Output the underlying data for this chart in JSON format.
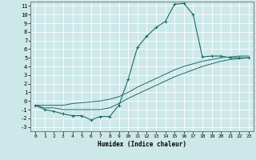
{
  "xlabel": "Humidex (Indice chaleur)",
  "xlim": [
    -0.5,
    23.5
  ],
  "ylim": [
    -3.5,
    11.5
  ],
  "xticks": [
    0,
    1,
    2,
    3,
    4,
    5,
    6,
    7,
    8,
    9,
    10,
    11,
    12,
    13,
    14,
    15,
    16,
    17,
    18,
    19,
    20,
    21,
    22,
    23
  ],
  "yticks": [
    -3,
    -2,
    -1,
    0,
    1,
    2,
    3,
    4,
    5,
    6,
    7,
    8,
    9,
    10,
    11
  ],
  "bg_color": "#cde8e8",
  "grid_color": "#ffffff",
  "line_color": "#1a6b6b",
  "line1_x": [
    0,
    1,
    2,
    3,
    4,
    5,
    6,
    7,
    8,
    9,
    10,
    11,
    12,
    13,
    14,
    15,
    16,
    17,
    18,
    19,
    20,
    21,
    22,
    23
  ],
  "line1_y": [
    -0.5,
    -1.0,
    -1.2,
    -1.5,
    -1.7,
    -1.7,
    -2.2,
    -1.8,
    -1.8,
    -0.5,
    2.5,
    6.2,
    7.5,
    8.5,
    9.2,
    11.2,
    11.3,
    10.0,
    5.1,
    5.2,
    5.2,
    5.0,
    5.0,
    5.0
  ],
  "line2_x": [
    0,
    1,
    2,
    3,
    4,
    5,
    6,
    7,
    8,
    9,
    10,
    11,
    12,
    13,
    14,
    15,
    16,
    17,
    18,
    19,
    20,
    21,
    22,
    23
  ],
  "line2_y": [
    -0.5,
    -0.8,
    -0.8,
    -1.0,
    -1.0,
    -1.0,
    -1.0,
    -1.0,
    -0.8,
    -0.3,
    0.3,
    0.8,
    1.3,
    1.8,
    2.3,
    2.8,
    3.2,
    3.6,
    4.0,
    4.3,
    4.6,
    4.8,
    4.9,
    5.0
  ],
  "line3_x": [
    0,
    1,
    2,
    3,
    4,
    5,
    6,
    7,
    8,
    9,
    10,
    11,
    12,
    13,
    14,
    15,
    16,
    17,
    18,
    19,
    20,
    21,
    22,
    23
  ],
  "line3_y": [
    -0.5,
    -0.5,
    -0.5,
    -0.5,
    -0.3,
    -0.2,
    -0.1,
    0.0,
    0.2,
    0.5,
    1.0,
    1.6,
    2.1,
    2.6,
    3.1,
    3.6,
    4.0,
    4.3,
    4.6,
    4.8,
    5.0,
    5.1,
    5.2,
    5.2
  ]
}
